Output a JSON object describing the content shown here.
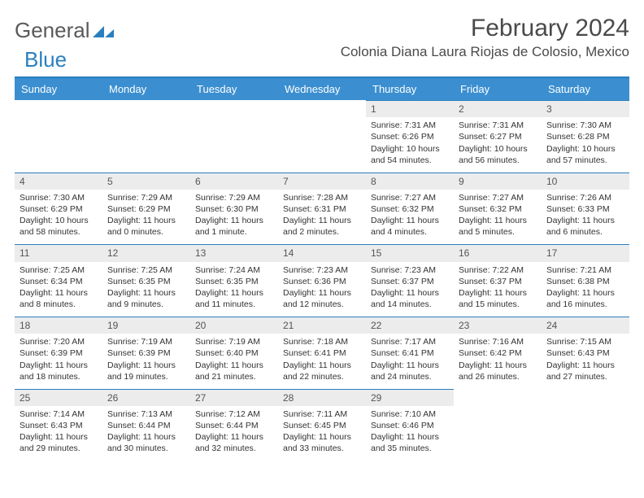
{
  "brand": {
    "part1": "General",
    "part2": "Blue"
  },
  "title": "February 2024",
  "location": "Colonia Diana Laura Riojas de Colosio, Mexico",
  "colors": {
    "header_bg": "#3b8fd0",
    "line": "#2a7fbf",
    "daynum_bg": "#ececec",
    "text": "#333333",
    "brand_gray": "#5a5a5a",
    "brand_blue": "#2a7fbf"
  },
  "weekdays": [
    "Sunday",
    "Monday",
    "Tuesday",
    "Wednesday",
    "Thursday",
    "Friday",
    "Saturday"
  ],
  "weeks": [
    [
      null,
      null,
      null,
      null,
      {
        "n": "1",
        "sr": "7:31 AM",
        "ss": "6:26 PM",
        "dl": "10 hours and 54 minutes."
      },
      {
        "n": "2",
        "sr": "7:31 AM",
        "ss": "6:27 PM",
        "dl": "10 hours and 56 minutes."
      },
      {
        "n": "3",
        "sr": "7:30 AM",
        "ss": "6:28 PM",
        "dl": "10 hours and 57 minutes."
      }
    ],
    [
      {
        "n": "4",
        "sr": "7:30 AM",
        "ss": "6:29 PM",
        "dl": "10 hours and 58 minutes."
      },
      {
        "n": "5",
        "sr": "7:29 AM",
        "ss": "6:29 PM",
        "dl": "11 hours and 0 minutes."
      },
      {
        "n": "6",
        "sr": "7:29 AM",
        "ss": "6:30 PM",
        "dl": "11 hours and 1 minute."
      },
      {
        "n": "7",
        "sr": "7:28 AM",
        "ss": "6:31 PM",
        "dl": "11 hours and 2 minutes."
      },
      {
        "n": "8",
        "sr": "7:27 AM",
        "ss": "6:32 PM",
        "dl": "11 hours and 4 minutes."
      },
      {
        "n": "9",
        "sr": "7:27 AM",
        "ss": "6:32 PM",
        "dl": "11 hours and 5 minutes."
      },
      {
        "n": "10",
        "sr": "7:26 AM",
        "ss": "6:33 PM",
        "dl": "11 hours and 6 minutes."
      }
    ],
    [
      {
        "n": "11",
        "sr": "7:25 AM",
        "ss": "6:34 PM",
        "dl": "11 hours and 8 minutes."
      },
      {
        "n": "12",
        "sr": "7:25 AM",
        "ss": "6:35 PM",
        "dl": "11 hours and 9 minutes."
      },
      {
        "n": "13",
        "sr": "7:24 AM",
        "ss": "6:35 PM",
        "dl": "11 hours and 11 minutes."
      },
      {
        "n": "14",
        "sr": "7:23 AM",
        "ss": "6:36 PM",
        "dl": "11 hours and 12 minutes."
      },
      {
        "n": "15",
        "sr": "7:23 AM",
        "ss": "6:37 PM",
        "dl": "11 hours and 14 minutes."
      },
      {
        "n": "16",
        "sr": "7:22 AM",
        "ss": "6:37 PM",
        "dl": "11 hours and 15 minutes."
      },
      {
        "n": "17",
        "sr": "7:21 AM",
        "ss": "6:38 PM",
        "dl": "11 hours and 16 minutes."
      }
    ],
    [
      {
        "n": "18",
        "sr": "7:20 AM",
        "ss": "6:39 PM",
        "dl": "11 hours and 18 minutes."
      },
      {
        "n": "19",
        "sr": "7:19 AM",
        "ss": "6:39 PM",
        "dl": "11 hours and 19 minutes."
      },
      {
        "n": "20",
        "sr": "7:19 AM",
        "ss": "6:40 PM",
        "dl": "11 hours and 21 minutes."
      },
      {
        "n": "21",
        "sr": "7:18 AM",
        "ss": "6:41 PM",
        "dl": "11 hours and 22 minutes."
      },
      {
        "n": "22",
        "sr": "7:17 AM",
        "ss": "6:41 PM",
        "dl": "11 hours and 24 minutes."
      },
      {
        "n": "23",
        "sr": "7:16 AM",
        "ss": "6:42 PM",
        "dl": "11 hours and 26 minutes."
      },
      {
        "n": "24",
        "sr": "7:15 AM",
        "ss": "6:43 PM",
        "dl": "11 hours and 27 minutes."
      }
    ],
    [
      {
        "n": "25",
        "sr": "7:14 AM",
        "ss": "6:43 PM",
        "dl": "11 hours and 29 minutes."
      },
      {
        "n": "26",
        "sr": "7:13 AM",
        "ss": "6:44 PM",
        "dl": "11 hours and 30 minutes."
      },
      {
        "n": "27",
        "sr": "7:12 AM",
        "ss": "6:44 PM",
        "dl": "11 hours and 32 minutes."
      },
      {
        "n": "28",
        "sr": "7:11 AM",
        "ss": "6:45 PM",
        "dl": "11 hours and 33 minutes."
      },
      {
        "n": "29",
        "sr": "7:10 AM",
        "ss": "6:46 PM",
        "dl": "11 hours and 35 minutes."
      },
      null,
      null
    ]
  ],
  "labels": {
    "sunrise": "Sunrise: ",
    "sunset": "Sunset: ",
    "daylight": "Daylight: "
  }
}
